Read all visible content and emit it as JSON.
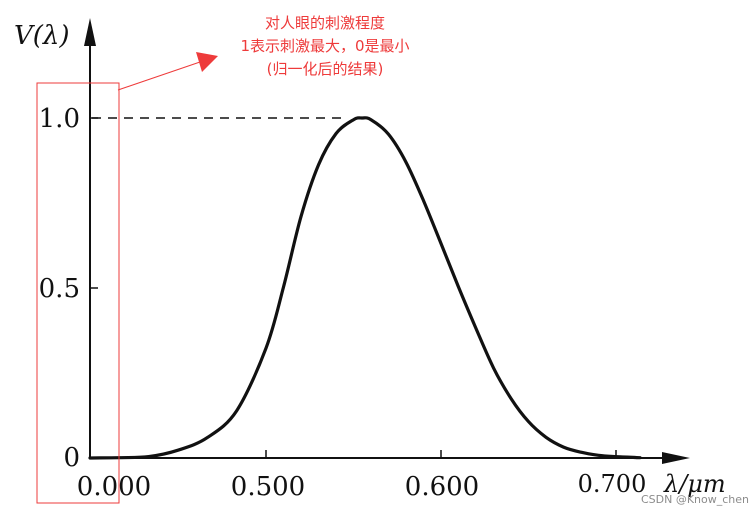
{
  "chart_data": {
    "type": "line",
    "ylabel": "V(λ)",
    "xlabel": "λ/μm",
    "x_ticks": [
      "0.000",
      "0.500",
      "0.600",
      "0.700"
    ],
    "y_ticks": [
      "0",
      "0.5",
      "1.0"
    ],
    "reference_line": {
      "y": 1.0,
      "style": "dashed"
    },
    "series": [
      {
        "points": [
          [
            0.38,
            0.0
          ],
          [
            0.4,
            0.001
          ],
          [
            0.42,
            0.004
          ],
          [
            0.44,
            0.023
          ],
          [
            0.46,
            0.06
          ],
          [
            0.48,
            0.139
          ],
          [
            0.5,
            0.323
          ],
          [
            0.51,
            0.503
          ],
          [
            0.52,
            0.71
          ],
          [
            0.53,
            0.862
          ],
          [
            0.54,
            0.954
          ],
          [
            0.55,
            0.995
          ],
          [
            0.555,
            1.0
          ],
          [
            0.56,
            0.995
          ],
          [
            0.57,
            0.952
          ],
          [
            0.58,
            0.87
          ],
          [
            0.59,
            0.757
          ],
          [
            0.6,
            0.631
          ],
          [
            0.61,
            0.503
          ],
          [
            0.62,
            0.381
          ],
          [
            0.63,
            0.265
          ],
          [
            0.64,
            0.175
          ],
          [
            0.65,
            0.107
          ],
          [
            0.66,
            0.061
          ],
          [
            0.67,
            0.032
          ],
          [
            0.68,
            0.017
          ],
          [
            0.69,
            0.008
          ],
          [
            0.7,
            0.004
          ],
          [
            0.72,
            0.001
          ]
        ]
      }
    ],
    "annotation": {
      "lines": [
        "对人眼的刺激程度",
        "1表示刺激最大，0是最小",
        "(归一化后的结果)"
      ],
      "color": "#ee3b3b",
      "points_to": "y-axis"
    }
  },
  "watermark": "CSDN @Know_chen"
}
